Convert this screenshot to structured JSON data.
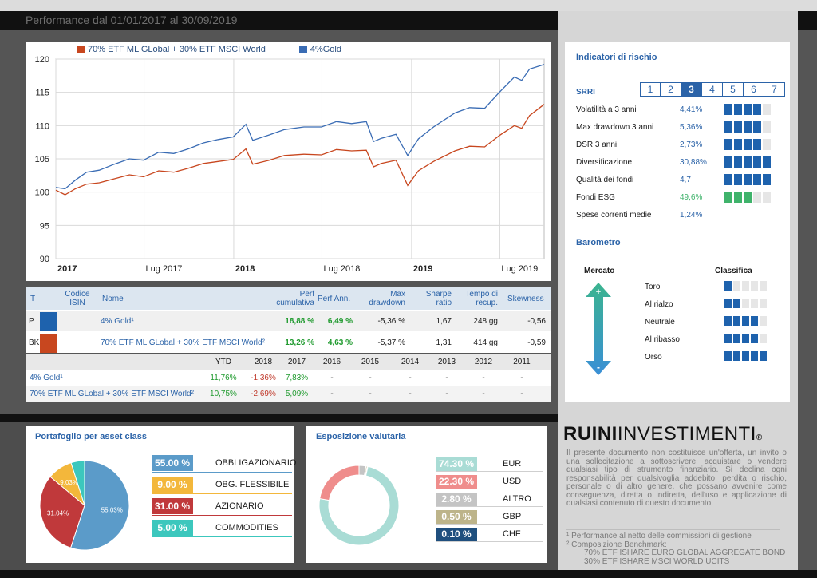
{
  "page_title": "Performance dal 01/01/2017 al 30/09/2019",
  "chart_data": {
    "type": "line",
    "x_ticks": [
      "2017",
      "Lug 2017",
      "2018",
      "Lug 2018",
      "2019",
      "Lug 2019"
    ],
    "y_ticks": [
      90,
      95,
      100,
      105,
      110,
      115,
      120
    ],
    "ylim": [
      90,
      120
    ],
    "xlim": [
      "2017-01-01",
      "2019-09-30"
    ],
    "grid": true,
    "legend_position": "top",
    "series": [
      {
        "name": "70% ETF ML GLobal + 30% ETF MSCI World",
        "color": "#c8471f",
        "x": [
          "2017-01-01",
          "2017-01-20",
          "2017-02-10",
          "2017-03-05",
          "2017-03-31",
          "2017-05-01",
          "2017-06-01",
          "2017-06-30",
          "2017-07-31",
          "2017-08-31",
          "2017-09-30",
          "2017-10-31",
          "2017-11-30",
          "2017-12-31",
          "2018-01-26",
          "2018-02-09",
          "2018-03-15",
          "2018-04-15",
          "2018-05-25",
          "2018-06-30",
          "2018-07-31",
          "2018-08-31",
          "2018-09-30",
          "2018-10-15",
          "2018-10-31",
          "2018-11-30",
          "2018-12-24",
          "2019-01-15",
          "2019-02-15",
          "2019-03-31",
          "2019-04-30",
          "2019-05-31",
          "2019-06-30",
          "2019-07-31",
          "2019-08-15",
          "2019-08-31",
          "2019-09-30"
        ],
        "y": [
          100.3,
          99.6,
          100.5,
          101.2,
          101.4,
          102.0,
          102.6,
          102.3,
          103.2,
          103.0,
          103.6,
          104.3,
          104.6,
          104.9,
          106.5,
          104.2,
          104.8,
          105.5,
          105.7,
          105.6,
          106.4,
          106.2,
          106.3,
          103.8,
          104.3,
          104.8,
          101.0,
          103.2,
          104.6,
          106.2,
          106.9,
          106.8,
          108.5,
          110.0,
          109.6,
          111.5,
          113.2
        ]
      },
      {
        "name": "4%Gold",
        "color": "#3a6cb4",
        "x": [
          "2017-01-01",
          "2017-01-20",
          "2017-02-10",
          "2017-03-05",
          "2017-03-31",
          "2017-05-01",
          "2017-06-01",
          "2017-06-30",
          "2017-07-31",
          "2017-08-31",
          "2017-09-30",
          "2017-10-31",
          "2017-11-30",
          "2017-12-31",
          "2018-01-26",
          "2018-02-09",
          "2018-03-15",
          "2018-04-15",
          "2018-05-25",
          "2018-06-30",
          "2018-07-31",
          "2018-08-31",
          "2018-09-30",
          "2018-10-15",
          "2018-10-31",
          "2018-11-30",
          "2018-12-24",
          "2019-01-15",
          "2019-02-15",
          "2019-03-31",
          "2019-04-30",
          "2019-05-31",
          "2019-06-30",
          "2019-07-31",
          "2019-08-15",
          "2019-08-31",
          "2019-09-30"
        ],
        "y": [
          100.7,
          100.5,
          101.8,
          103.0,
          103.3,
          104.2,
          105.0,
          104.8,
          106.0,
          105.8,
          106.5,
          107.4,
          107.9,
          108.3,
          110.2,
          107.8,
          108.6,
          109.4,
          109.8,
          109.8,
          110.6,
          110.3,
          110.6,
          107.6,
          108.1,
          108.7,
          105.5,
          108.0,
          109.8,
          111.9,
          112.7,
          112.6,
          115.0,
          117.3,
          116.8,
          118.5,
          119.2
        ]
      }
    ]
  },
  "table1": {
    "headers": {
      "t": "T",
      "isin": "Codice ISIN",
      "nome": "Nome",
      "perf_cum": "Perf cumulativa",
      "perf_ann": "Perf Ann.",
      "max_dd": "Max drawdown",
      "sharpe": "Sharpe ratio",
      "tempo": "Tempo di recup.",
      "skew": "Skewness"
    },
    "rows": [
      {
        "t": "P",
        "color": "#1e62ad",
        "nome": "4% Gold¹",
        "perf_cum": "18,88 %",
        "perf_ann": "6,49 %",
        "max_dd": "-5,36 %",
        "sharpe": "1,67",
        "tempo": "248 gg",
        "skew": "-0,56"
      },
      {
        "t": "BK",
        "color": "#c8471f",
        "nome": "70% ETF ML GLobal + 30% ETF MSCI World²",
        "perf_cum": "13,26 %",
        "perf_ann": "4,63 %",
        "max_dd": "-5,37 %",
        "sharpe": "1,31",
        "tempo": "414 gg",
        "skew": "-0,59"
      }
    ]
  },
  "table2": {
    "years": [
      "YTD",
      "2018",
      "2017",
      "2016",
      "2015",
      "2014",
      "2013",
      "2012",
      "2011"
    ],
    "rows": [
      {
        "label": "4% Gold¹",
        "values": [
          "11,76%",
          "-1,36%",
          "7,83%",
          "-",
          "-",
          "-",
          "-",
          "-",
          "-"
        ]
      },
      {
        "label": "70% ETF ML GLobal + 30% ETF MSCI World²",
        "values": [
          "10,75%",
          "-2,69%",
          "5,09%",
          "-",
          "-",
          "-",
          "-",
          "-",
          "-"
        ]
      }
    ]
  },
  "asset": {
    "title": "Portafoglio per asset class",
    "items": [
      {
        "pct": "55.00 %",
        "name": "OBBLIGAZIONARIO",
        "color": "#5b9bc9",
        "share": 55.03,
        "slice_label": "55.03%"
      },
      {
        "pct": "9.00 %",
        "name": "OBG. FLESSIBILE",
        "color": "#f3b73b",
        "share": 9.03,
        "slice_label": "9.03%"
      },
      {
        "pct": "31.00 %",
        "name": "AZIONARIO",
        "color": "#c0393b",
        "share": 31.04,
        "slice_label": "31.04%"
      },
      {
        "pct": "5.00 %",
        "name": "COMMODITIES",
        "color": "#3cc7bd",
        "share": 4.9,
        "slice_label": ""
      }
    ]
  },
  "fx": {
    "title": "Esposizione valutaria",
    "items": [
      {
        "pct": "74.30 %",
        "name": "EUR",
        "color": "#a9dcd5",
        "share": 74.3
      },
      {
        "pct": "22.30 %",
        "name": "USD",
        "color": "#ef8d8c",
        "share": 22.3
      },
      {
        "pct": "2.80 %",
        "name": "ALTRO",
        "color": "#c4c4c4",
        "share": 2.8
      },
      {
        "pct": "0.50 %",
        "name": "GBP",
        "color": "#bdb48a",
        "share": 0.5
      },
      {
        "pct": "0.10 %",
        "name": "CHF",
        "color": "#1f4f7e",
        "share": 0.1
      }
    ]
  },
  "risk": {
    "title": "Indicatori di rischio",
    "srri_label": "SRRI",
    "srri_levels": [
      "1",
      "2",
      "3",
      "4",
      "5",
      "6",
      "7"
    ],
    "srri_value": 3,
    "indicators": [
      {
        "name": "Volatilità a 3 anni",
        "value": "4,41%",
        "level": 4,
        "of": 5,
        "color": "blue"
      },
      {
        "name": "Max drawdown 3 anni",
        "value": "5,36%",
        "level": 4,
        "of": 5,
        "color": "blue"
      },
      {
        "name": "DSR 3 anni",
        "value": "2,73%",
        "level": 4,
        "of": 5,
        "color": "blue"
      },
      {
        "name": "Diversificazione",
        "value": "30,88%",
        "level": 5,
        "of": 5,
        "color": "blue"
      },
      {
        "name": "Qualità dei fondi",
        "value": "4,7",
        "level": 5,
        "of": 5,
        "color": "blue"
      },
      {
        "name": "Fondi ESG",
        "value": "49,6%",
        "level": 3,
        "of": 5,
        "color": "green"
      },
      {
        "name": "Spese correnti medie",
        "value": "1,24%",
        "level": 0,
        "of": 0,
        "color": "blue"
      }
    ],
    "barometer_title": "Barometro",
    "barometer_mercato": "Mercato",
    "barometer_classifica": "Classifica",
    "barometer": [
      {
        "name": "Toro",
        "level": 1,
        "of": 5
      },
      {
        "name": "Al rialzo",
        "level": 2,
        "of": 5
      },
      {
        "name": "Neutrale",
        "level": 4,
        "of": 5
      },
      {
        "name": "Al ribasso",
        "level": 4,
        "of": 5
      },
      {
        "name": "Orso",
        "level": 5,
        "of": 5
      }
    ]
  },
  "brand": {
    "bold": "RUINI",
    "light": "INVESTIMENTI",
    "mark": "®"
  },
  "disclaimer": "Il presente documento non costituisce un'offerta, un invito o una sollecitazione a sottoscrivere, acquistare o vendere qualsiasi tipo di strumento finanziario. Si declina ogni responsabilità per qualsivoglia addebito, perdita o rischio, personale o di altro genere, che possano avvenire come conseguenza, diretta o indiretta, dell'uso e applicazione di qualsiasi contenuto di questo documento.",
  "notes": {
    "n1": "¹ Performance al netto delle commissioni di gestione",
    "n2": "² Composizione Benchmark:",
    "n3": "70% ETF ISHARE EURO GLOBAL AGGREGATE BOND",
    "n4": "30% ETF ISHARE MSCI WORLD UCITS"
  }
}
